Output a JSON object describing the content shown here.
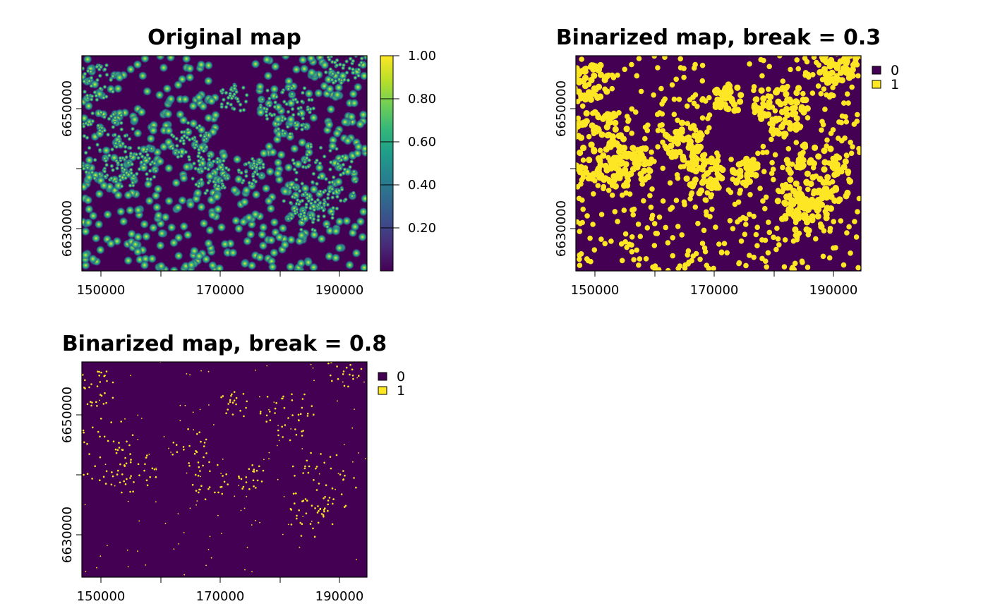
{
  "colors": {
    "background_class": "#440154",
    "presence_class": "#fde725",
    "viridis": [
      "#440154",
      "#482878",
      "#3e4a89",
      "#31688e",
      "#26828e",
      "#1f9e89",
      "#35b779",
      "#6ece58",
      "#b5de2b",
      "#fde725"
    ]
  },
  "panels": [
    {
      "id": "original",
      "title": "Original map",
      "x_ticks": [
        "150000",
        "170000",
        "190000"
      ],
      "y_ticks": [
        "6650000",
        "6630000"
      ],
      "colorbar_labels": [
        "1.00",
        "0.80",
        "0.60",
        "0.40",
        "0.20"
      ]
    },
    {
      "id": "break03",
      "title": "Binarized map, break = 0.3",
      "x_ticks": [
        "150000",
        "170000",
        "190000"
      ],
      "y_ticks": [
        "6650000",
        "6630000"
      ],
      "legend": [
        "0",
        "1"
      ]
    },
    {
      "id": "break08",
      "title": "Binarized map, break = 0.8",
      "x_ticks": [
        "150000",
        "170000",
        "190000"
      ],
      "y_ticks": [
        "6650000",
        "6630000"
      ],
      "legend": [
        "0",
        "1"
      ]
    }
  ]
}
